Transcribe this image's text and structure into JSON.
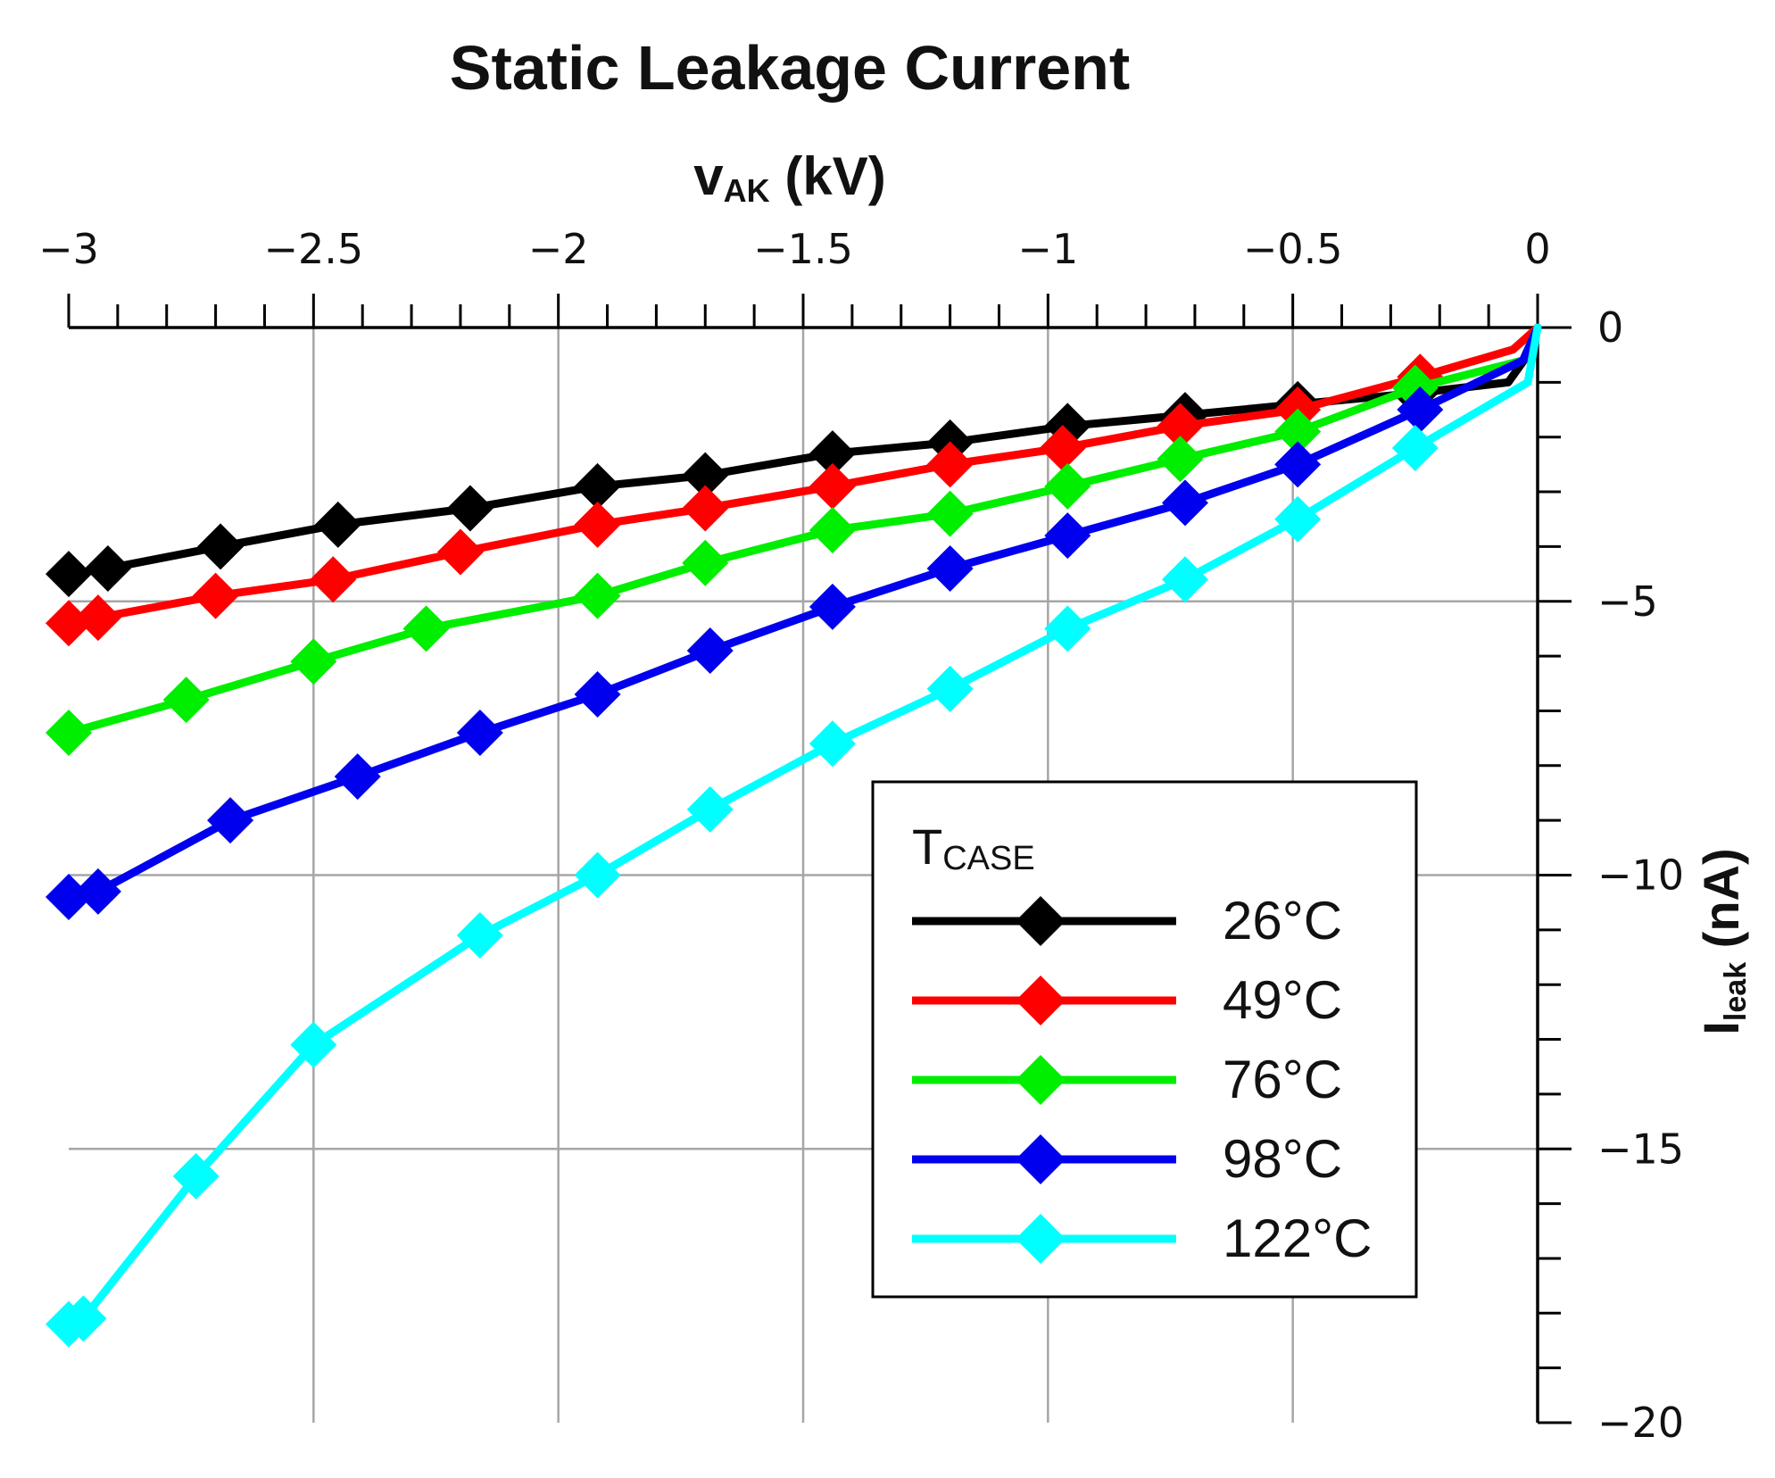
{
  "chart_data": {
    "type": "line",
    "title": "Static Leakage Current",
    "xlabel": "v",
    "xlabel_sub": "AK",
    "xlabel_unit": " (kV)",
    "ylabel": "I",
    "ylabel_sub": "leak",
    "ylabel_unit": " (nA)",
    "xlim": [
      -3,
      0
    ],
    "ylim": [
      -20,
      0
    ],
    "x_ticks": [
      -3,
      -2.5,
      -2,
      -1.5,
      -1,
      -0.5,
      0
    ],
    "x_tick_labels": [
      "−3",
      "−2.5",
      "−2",
      "−1.5",
      "−1",
      "−0.5",
      "0"
    ],
    "y_ticks": [
      0,
      -5,
      -10,
      -15,
      -20
    ],
    "y_tick_labels": [
      "0",
      "−5",
      "−10",
      "−15",
      "−20"
    ],
    "grid": true,
    "legend_title": "T",
    "legend_title_sub": "CASE",
    "legend_position": "bottom-right",
    "series": [
      {
        "name": "26°C",
        "color": "#000000",
        "x": [
          -3.0,
          -2.92,
          -2.69,
          -2.45,
          -2.18,
          -1.92,
          -1.7,
          -1.44,
          -1.2,
          -0.96,
          -0.72,
          -0.49,
          -0.25,
          -0.06,
          -0.02,
          0.0
        ],
        "y": [
          -4.5,
          -4.4,
          -4.0,
          -3.6,
          -3.3,
          -2.9,
          -2.7,
          -2.3,
          -2.1,
          -1.8,
          -1.6,
          -1.4,
          -1.2,
          -1.0,
          -0.5,
          0.0
        ]
      },
      {
        "name": "49°C",
        "color": "#ff0000",
        "x": [
          -3.0,
          -2.94,
          -2.7,
          -2.46,
          -2.2,
          -1.92,
          -1.7,
          -1.44,
          -1.2,
          -0.97,
          -0.73,
          -0.49,
          -0.24,
          -0.05,
          0.0
        ],
        "y": [
          -5.4,
          -5.3,
          -4.9,
          -4.6,
          -4.1,
          -3.6,
          -3.3,
          -2.9,
          -2.5,
          -2.2,
          -1.8,
          -1.5,
          -0.9,
          -0.4,
          0.0
        ]
      },
      {
        "name": "76°C",
        "color": "#00ee00",
        "x": [
          -3.0,
          -2.76,
          -2.5,
          -2.27,
          -1.92,
          -1.7,
          -1.44,
          -1.2,
          -0.96,
          -0.73,
          -0.49,
          -0.25,
          -0.03,
          0.0
        ],
        "y": [
          -7.4,
          -6.8,
          -6.1,
          -5.5,
          -4.9,
          -4.3,
          -3.7,
          -3.4,
          -2.9,
          -2.4,
          -1.9,
          -1.1,
          -0.6,
          0.0
        ]
      },
      {
        "name": "98°C",
        "color": "#0000ee",
        "x": [
          -3.0,
          -2.94,
          -2.67,
          -2.41,
          -2.16,
          -1.92,
          -1.69,
          -1.44,
          -1.2,
          -0.96,
          -0.72,
          -0.49,
          -0.24,
          -0.03,
          0.0
        ],
        "y": [
          -10.4,
          -10.3,
          -9.0,
          -8.2,
          -7.4,
          -6.7,
          -5.9,
          -5.1,
          -4.4,
          -3.8,
          -3.2,
          -2.5,
          -1.5,
          -0.6,
          0.0
        ]
      },
      {
        "name": "122°C",
        "color": "#00ffff",
        "x": [
          -3.0,
          -2.97,
          -2.74,
          -2.5,
          -2.16,
          -1.92,
          -1.69,
          -1.44,
          -1.2,
          -0.96,
          -0.72,
          -0.49,
          -0.25,
          -0.02,
          0.0
        ],
        "y": [
          -18.2,
          -18.1,
          -15.5,
          -13.1,
          -11.1,
          -10.0,
          -8.8,
          -7.6,
          -6.6,
          -5.5,
          -4.6,
          -3.5,
          -2.2,
          -1.0,
          0.0
        ]
      }
    ]
  }
}
